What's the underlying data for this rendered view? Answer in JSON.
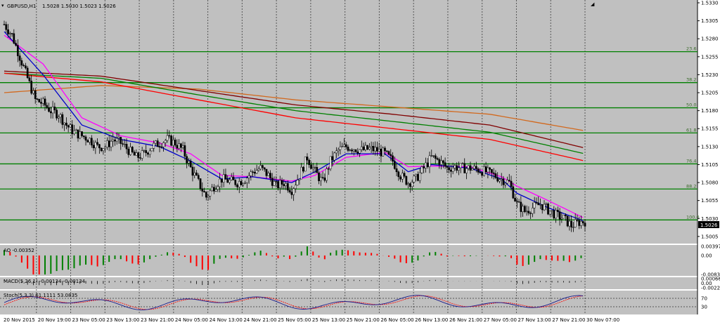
{
  "header": {
    "symbol_label": "GBPUSD,H1",
    "ohlc": "1.5028 1.5030 1.5023 1.5026"
  },
  "current_price_tag": "1.5026",
  "colors": {
    "background": "#c0c0c0",
    "bull_candle": "#ffffff",
    "bear_candle": "#000000",
    "fib_line": "#008000",
    "ema_fast": "#0000c8",
    "ema_slow": "#ff00ff",
    "ma_red": "#ff0000",
    "ma_green": "#008000",
    "ma_maroon": "#800000",
    "ma_orange": "#d2691e",
    "ao_up": "#008000",
    "ao_down": "#ff0000"
  },
  "chart_data": [
    {
      "type": "candlestick",
      "name": "GBPUSD,H1",
      "ylim": [
        1.5,
        1.533
      ],
      "y_ticks": [
        "1.5330",
        "1.5305",
        "1.5280",
        "1.5255",
        "1.5230",
        "1.5205",
        "1.5180",
        "1.5155",
        "1.5130",
        "1.5105",
        "1.5080",
        "1.5055",
        "1.5030",
        "1.5005"
      ],
      "x_ticks": [
        "20 Nov 2015",
        "20 Nov 19:00",
        "23 Nov 05:00",
        "23 Nov 13:00",
        "23 Nov 21:00",
        "24 Nov 05:00",
        "24 Nov 13:00",
        "24 Nov 21:00",
        "25 Nov 05:00",
        "25 Nov 13:00",
        "25 Nov 21:00",
        "26 Nov 05:00",
        "26 Nov 13:00",
        "26 Nov 21:00",
        "27 Nov 05:00",
        "27 Nov 13:00",
        "27 Nov 21:00",
        "30 Nov 07:00"
      ],
      "fib_levels": [
        {
          "label": "23.6",
          "price": 1.5262
        },
        {
          "label": "38.2",
          "price": 1.5219
        },
        {
          "label": "50.0",
          "price": 1.5184
        },
        {
          "label": "61.8",
          "price": 1.5149
        },
        {
          "label": "76.4",
          "price": 1.5106
        },
        {
          "label": "88.2",
          "price": 1.5071
        },
        {
          "label": "100.0",
          "price": 1.5028
        }
      ],
      "close_path": [
        [
          0,
          1.53
        ],
        [
          4,
          1.5285
        ],
        [
          8,
          1.5255
        ],
        [
          12,
          1.5225
        ],
        [
          16,
          1.5195
        ],
        [
          20,
          1.519
        ],
        [
          24,
          1.518
        ],
        [
          28,
          1.5175
        ],
        [
          32,
          1.516
        ],
        [
          36,
          1.515
        ],
        [
          40,
          1.5145
        ],
        [
          44,
          1.514
        ],
        [
          48,
          1.513
        ],
        [
          52,
          1.513
        ],
        [
          56,
          1.514
        ],
        [
          60,
          1.5135
        ],
        [
          64,
          1.5125
        ],
        [
          68,
          1.5115
        ],
        [
          72,
          1.512
        ],
        [
          76,
          1.513
        ],
        [
          80,
          1.5135
        ],
        [
          84,
          1.514
        ],
        [
          88,
          1.5135
        ],
        [
          92,
          1.5125
        ],
        [
          96,
          1.51
        ],
        [
          100,
          1.508
        ],
        [
          104,
          1.506
        ],
        [
          108,
          1.5075
        ],
        [
          112,
          1.5085
        ],
        [
          116,
          1.5082
        ],
        [
          120,
          1.508
        ],
        [
          124,
          1.5085
        ],
        [
          128,
          1.5095
        ],
        [
          132,
          1.51
        ],
        [
          136,
          1.509
        ],
        [
          140,
          1.5075
        ],
        [
          144,
          1.508
        ],
        [
          148,
          1.507
        ],
        [
          152,
          1.509
        ],
        [
          156,
          1.5115
        ],
        [
          160,
          1.5095
        ],
        [
          164,
          1.508
        ],
        [
          168,
          1.511
        ],
        [
          172,
          1.5125
        ],
        [
          176,
          1.513
        ],
        [
          180,
          1.5128
        ],
        [
          184,
          1.5125
        ],
        [
          188,
          1.5127
        ],
        [
          192,
          1.5125
        ],
        [
          196,
          1.512
        ],
        [
          200,
          1.511
        ],
        [
          204,
          1.509
        ],
        [
          208,
          1.508
        ],
        [
          212,
          1.5085
        ],
        [
          216,
          1.51
        ],
        [
          220,
          1.5115
        ],
        [
          224,
          1.511
        ],
        [
          228,
          1.51
        ],
        [
          232,
          1.5102
        ],
        [
          236,
          1.51
        ],
        [
          240,
          1.51
        ],
        [
          244,
          1.5098
        ],
        [
          248,
          1.5095
        ],
        [
          252,
          1.509
        ],
        [
          256,
          1.5085
        ],
        [
          260,
          1.508
        ],
        [
          264,
          1.505
        ],
        [
          268,
          1.504
        ],
        [
          272,
          1.5045
        ],
        [
          276,
          1.505
        ],
        [
          280,
          1.5042
        ],
        [
          284,
          1.5035
        ],
        [
          288,
          1.503
        ],
        [
          292,
          1.502
        ],
        [
          296,
          1.5025
        ],
        [
          299,
          1.5026
        ]
      ],
      "indicators": {
        "ema_fast": [
          [
            0,
            1.529
          ],
          [
            20,
            1.523
          ],
          [
            40,
            1.516
          ],
          [
            60,
            1.514
          ],
          [
            80,
            1.513
          ],
          [
            96,
            1.511
          ],
          [
            112,
            1.5085
          ],
          [
            128,
            1.5088
          ],
          [
            148,
            1.508
          ],
          [
            160,
            1.5095
          ],
          [
            176,
            1.512
          ],
          [
            196,
            1.512
          ],
          [
            208,
            1.5095
          ],
          [
            220,
            1.5105
          ],
          [
            240,
            1.51
          ],
          [
            256,
            1.5085
          ],
          [
            264,
            1.5065
          ],
          [
            280,
            1.5045
          ],
          [
            299,
            1.5026
          ]
        ],
        "ema_slow": [
          [
            0,
            1.5285
          ],
          [
            20,
            1.5245
          ],
          [
            40,
            1.517
          ],
          [
            60,
            1.5145
          ],
          [
            80,
            1.5135
          ],
          [
            96,
            1.512
          ],
          [
            112,
            1.509
          ],
          [
            128,
            1.5088
          ],
          [
            148,
            1.5082
          ],
          [
            160,
            1.509
          ],
          [
            176,
            1.5115
          ],
          [
            196,
            1.5122
          ],
          [
            208,
            1.5102
          ],
          [
            220,
            1.5103
          ],
          [
            240,
            1.5102
          ],
          [
            256,
            1.5088
          ],
          [
            264,
            1.5075
          ],
          [
            280,
            1.5055
          ],
          [
            299,
            1.503
          ]
        ],
        "ma_red": [
          [
            0,
            1.5232
          ],
          [
            50,
            1.522
          ],
          [
            100,
            1.5195
          ],
          [
            150,
            1.517
          ],
          [
            200,
            1.5155
          ],
          [
            250,
            1.514
          ],
          [
            299,
            1.511
          ]
        ],
        "ma_green": [
          [
            0,
            1.5232
          ],
          [
            50,
            1.5225
          ],
          [
            100,
            1.5202
          ],
          [
            150,
            1.518
          ],
          [
            200,
            1.5165
          ],
          [
            250,
            1.515
          ],
          [
            299,
            1.512
          ]
        ],
        "ma_maroon": [
          [
            0,
            1.5235
          ],
          [
            50,
            1.5228
          ],
          [
            100,
            1.5208
          ],
          [
            150,
            1.5188
          ],
          [
            200,
            1.5175
          ],
          [
            250,
            1.516
          ],
          [
            299,
            1.5128
          ]
        ],
        "ma_orange": [
          [
            0,
            1.5205
          ],
          [
            50,
            1.5215
          ],
          [
            100,
            1.521
          ],
          [
            150,
            1.5195
          ],
          [
            200,
            1.5185
          ],
          [
            250,
            1.5175
          ],
          [
            299,
            1.5152
          ]
        ]
      }
    },
    {
      "type": "bar",
      "name": "AO -0.00352",
      "y_ticks": [
        "0.00397",
        "0.00",
        "-0.0083"
      ],
      "values_sign_pattern": [
        -1,
        -1,
        -1,
        -1,
        -1,
        1,
        1,
        -1,
        -1,
        1,
        1,
        -1,
        1,
        1,
        1,
        -1,
        -1,
        1,
        1,
        1,
        1,
        1,
        -1,
        -1,
        -1,
        1,
        1,
        1,
        1,
        1,
        -1,
        -1,
        1,
        1,
        1,
        1,
        -1,
        -1,
        -1,
        -1,
        1,
        1,
        1,
        1,
        1,
        -1,
        -1,
        -1,
        1,
        1,
        1
      ]
    },
    {
      "type": "histogram",
      "name": "MACD(5,26,1) -0.00134 -0.00134",
      "y_ticks": [
        "0.00066",
        "0.00",
        "-0.00227"
      ]
    },
    {
      "type": "line",
      "name": "Stoch(5,3,3) 61.1111 53.0835",
      "y_ticks": [
        "70",
        "30"
      ]
    }
  ]
}
